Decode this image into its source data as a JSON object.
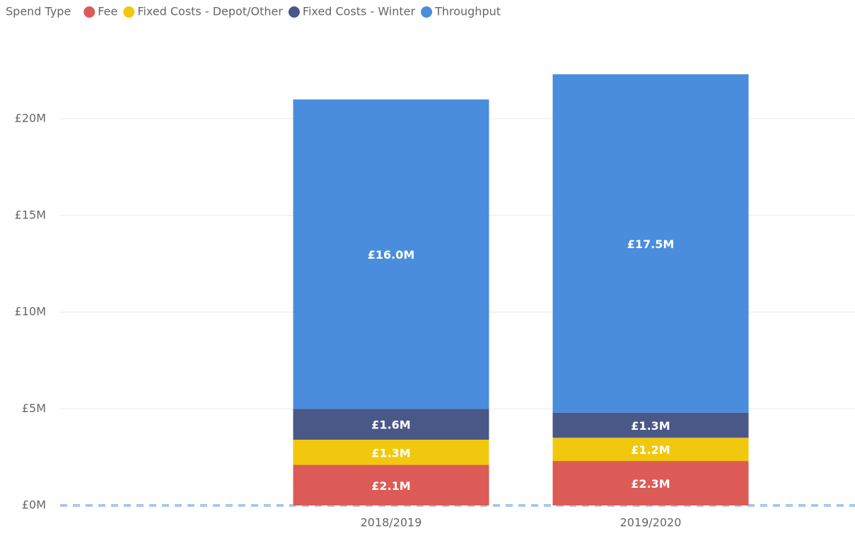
{
  "chart_data": {
    "type": "stacked_bar",
    "legend_title": "Spend Type",
    "categories": [
      "2018/2019",
      "2019/2020"
    ],
    "series": [
      {
        "name": "Fee",
        "color": "#DD5B57",
        "values": [
          2100000,
          2300000
        ],
        "value_labels": [
          "£2.1M",
          "£2.3M"
        ]
      },
      {
        "name": "Fixed Costs - Depot/Other",
        "color": "#F2C80F",
        "values": [
          1300000,
          1200000
        ],
        "value_labels": [
          "£1.3M",
          "£1.2M"
        ]
      },
      {
        "name": "Fixed Costs - Winter",
        "color": "#4A5888",
        "values": [
          1600000,
          1300000
        ],
        "value_labels": [
          "£1.6M",
          "£1.3M"
        ]
      },
      {
        "name": "Throughput",
        "color": "#4A8DDC",
        "values": [
          16000000,
          17500000
        ],
        "value_labels": [
          "£16.0M",
          "£17.5M"
        ]
      }
    ],
    "ylim": [
      0,
      24000000
    ],
    "yticks": [
      {
        "value": 0,
        "label": "£0M"
      },
      {
        "value": 5000000,
        "label": "£5M"
      },
      {
        "value": 10000000,
        "label": "£10M"
      },
      {
        "value": 15000000,
        "label": "£15M"
      },
      {
        "value": 20000000,
        "label": "£20M"
      }
    ],
    "grid": true
  }
}
